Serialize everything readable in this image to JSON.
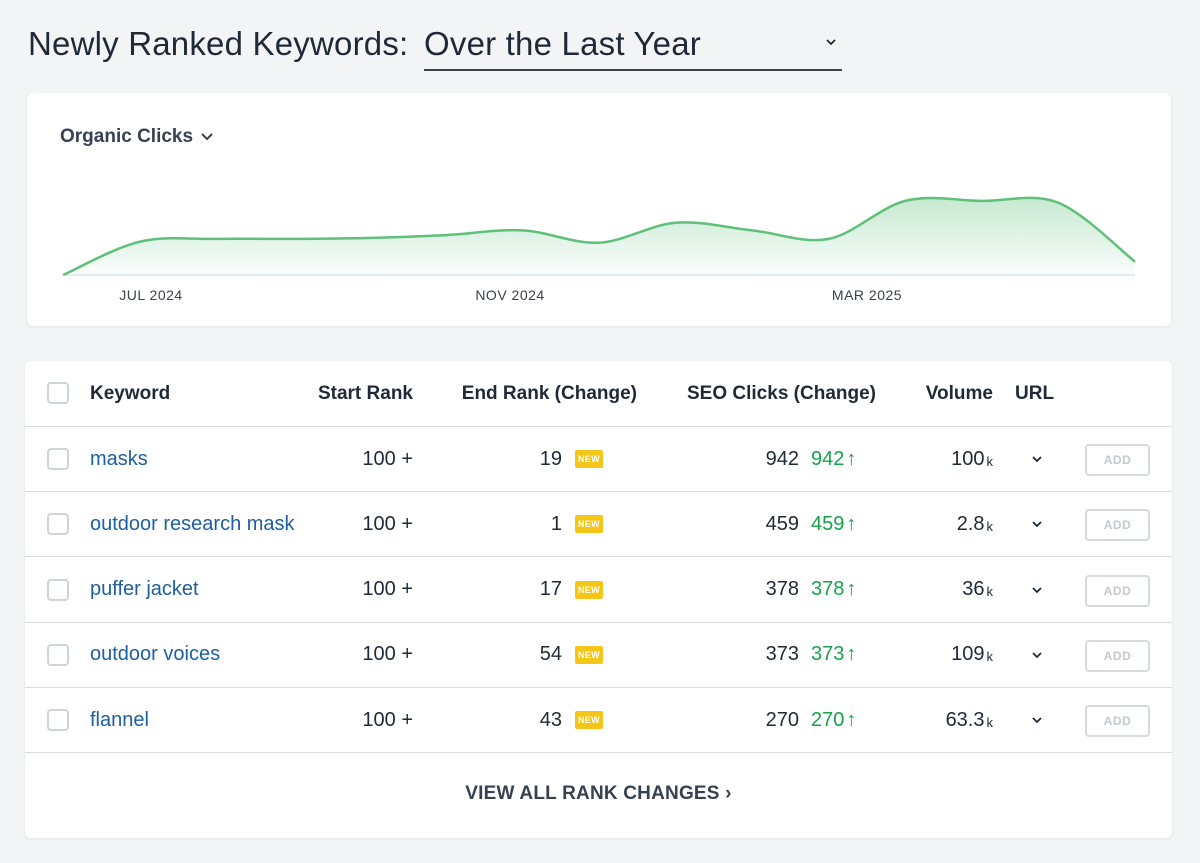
{
  "header": {
    "title": "Newly Ranked Keywords:",
    "period": "Over the Last Year"
  },
  "chart": {
    "metric_label": "Organic Clicks"
  },
  "chart_data": {
    "type": "area",
    "title": "",
    "x_ticks": [
      "JUL 2024",
      "NOV 2024",
      "MAR 2025"
    ],
    "series": [
      {
        "values": [
          0.0,
          0.35,
          0.38,
          0.38,
          0.39,
          0.42,
          0.47,
          0.34,
          0.55,
          0.47,
          0.38,
          0.78,
          0.78,
          0.76,
          0.14
        ]
      }
    ],
    "color": "#5ec07a",
    "grid": false,
    "legend": "none"
  },
  "table": {
    "headers": {
      "keyword": "Keyword",
      "start_rank": "Start Rank",
      "end_rank": "End Rank (Change)",
      "seo_clicks": "SEO Clicks (Change)",
      "volume": "Volume",
      "url": "URL"
    },
    "new_badge": "NEW",
    "add_label": "ADD",
    "up_arrow": "↑",
    "rows": [
      {
        "keyword": "masks",
        "start_rank": "100 +",
        "end_rank": "19",
        "clicks": "942",
        "clicks_change": "942",
        "volume": "100",
        "volume_unit": "k"
      },
      {
        "keyword": "outdoor research mask",
        "start_rank": "100 +",
        "end_rank": "1",
        "clicks": "459",
        "clicks_change": "459",
        "volume": "2.8",
        "volume_unit": "k"
      },
      {
        "keyword": "puffer jacket",
        "start_rank": "100 +",
        "end_rank": "17",
        "clicks": "378",
        "clicks_change": "378",
        "volume": "36",
        "volume_unit": "k"
      },
      {
        "keyword": "outdoor voices",
        "start_rank": "100 +",
        "end_rank": "54",
        "clicks": "373",
        "clicks_change": "373",
        "volume": "109",
        "volume_unit": "k"
      },
      {
        "keyword": "flannel",
        "start_rank": "100 +",
        "end_rank": "43",
        "clicks": "270",
        "clicks_change": "270",
        "volume": "63.3",
        "volume_unit": "k"
      }
    ]
  },
  "footer": {
    "view_all": "VIEW ALL RANK CHANGES ›"
  }
}
